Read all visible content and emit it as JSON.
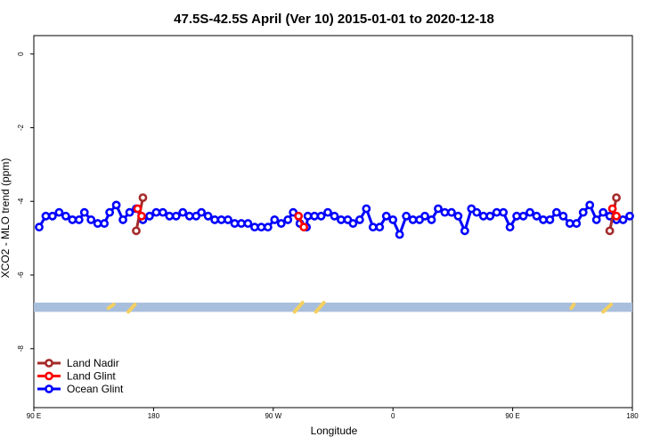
{
  "chart_data": {
    "type": "line",
    "title": "47.5S-42.5S April (Ver 10)   2015-01-01 to 2020-12-18",
    "xlabel": "Longitude",
    "ylabel": "XCO2 - MLO trend (ppm)",
    "x_ticks": [
      {
        "pos": 90,
        "label": "90 E"
      },
      {
        "pos": 180,
        "label": "180"
      },
      {
        "pos": 270,
        "label": "90 W"
      },
      {
        "pos": 360,
        "label": "0"
      },
      {
        "pos": 450,
        "label": "90 E"
      },
      {
        "pos": 540,
        "label": "180"
      }
    ],
    "y_ticks": [
      0,
      -2,
      -4,
      -6,
      -8
    ],
    "xlim": [
      90,
      540
    ],
    "ylim": [
      -9.6,
      0.5
    ],
    "legend_position": "bottom-left",
    "series": [
      {
        "name": "Land Nadir",
        "color": "#a52a2a",
        "segments": [
          [
            [
              167,
              -4.8
            ],
            [
              172,
              -3.9
            ]
          ],
          [
            [
              523,
              -4.8
            ],
            [
              528,
              -3.9
            ]
          ]
        ]
      },
      {
        "name": "Land Glint",
        "color": "#ff0000",
        "segments": [
          [
            [
              168,
              -4.2
            ],
            [
              171,
              -4.4
            ]
          ],
          [
            [
              289,
              -4.4
            ],
            [
              293,
              -4.7
            ]
          ],
          [
            [
              525,
              -4.2
            ],
            [
              528,
              -4.4
            ]
          ]
        ]
      },
      {
        "name": "Ocean Glint",
        "color": "#0000ff",
        "segments": [
          [
            [
              94,
              -4.7
            ],
            [
              99,
              -4.4
            ],
            [
              104,
              -4.4
            ],
            [
              109,
              -4.3
            ],
            [
              114,
              -4.4
            ],
            [
              119,
              -4.5
            ],
            [
              124,
              -4.5
            ],
            [
              128,
              -4.3
            ],
            [
              133,
              -4.5
            ],
            [
              138,
              -4.6
            ],
            [
              143,
              -4.6
            ],
            [
              147,
              -4.3
            ],
            [
              152,
              -4.1
            ],
            [
              157,
              -4.5
            ],
            [
              162,
              -4.3
            ],
            [
              167,
              -4.2
            ],
            [
              172,
              -4.5
            ],
            [
              177,
              -4.4
            ],
            [
              182,
              -4.3
            ],
            [
              187,
              -4.3
            ],
            [
              192,
              -4.4
            ],
            [
              197,
              -4.4
            ],
            [
              202,
              -4.3
            ],
            [
              207,
              -4.4
            ],
            [
              212,
              -4.4
            ],
            [
              216,
              -4.3
            ],
            [
              221,
              -4.4
            ],
            [
              226,
              -4.5
            ],
            [
              231,
              -4.5
            ],
            [
              236,
              -4.5
            ],
            [
              241,
              -4.6
            ],
            [
              246,
              -4.6
            ],
            [
              251,
              -4.6
            ],
            [
              256,
              -4.7
            ],
            [
              261,
              -4.7
            ],
            [
              266,
              -4.7
            ],
            [
              271,
              -4.5
            ],
            [
              276,
              -4.6
            ],
            [
              281,
              -4.5
            ],
            [
              285,
              -4.3
            ],
            [
              290,
              -4.6
            ],
            [
              295,
              -4.7
            ],
            [
              296,
              -4.4
            ],
            [
              301,
              -4.4
            ],
            [
              306,
              -4.4
            ],
            [
              311,
              -4.3
            ],
            [
              316,
              -4.4
            ],
            [
              321,
              -4.5
            ],
            [
              326,
              -4.5
            ],
            [
              330,
              -4.6
            ],
            [
              335,
              -4.5
            ],
            [
              340,
              -4.2
            ],
            [
              345,
              -4.7
            ],
            [
              350,
              -4.7
            ],
            [
              355,
              -4.4
            ],
            [
              360,
              -4.5
            ],
            [
              365,
              -4.9
            ],
            [
              370,
              -4.4
            ],
            [
              375,
              -4.5
            ],
            [
              380,
              -4.5
            ],
            [
              384,
              -4.4
            ],
            [
              389,
              -4.5
            ],
            [
              394,
              -4.2
            ],
            [
              399,
              -4.3
            ],
            [
              404,
              -4.3
            ],
            [
              409,
              -4.4
            ],
            [
              414,
              -4.8
            ],
            [
              419,
              -4.2
            ],
            [
              423,
              -4.3
            ],
            [
              428,
              -4.4
            ],
            [
              433,
              -4.4
            ],
            [
              438,
              -4.3
            ],
            [
              443,
              -4.3
            ],
            [
              448,
              -4.7
            ],
            [
              453,
              -4.4
            ],
            [
              458,
              -4.4
            ],
            [
              463,
              -4.3
            ],
            [
              468,
              -4.4
            ],
            [
              473,
              -4.5
            ],
            [
              478,
              -4.5
            ],
            [
              483,
              -4.3
            ],
            [
              488,
              -4.4
            ],
            [
              493,
              -4.6
            ],
            [
              498,
              -4.6
            ],
            [
              503,
              -4.3
            ],
            [
              508,
              -4.1
            ],
            [
              513,
              -4.5
            ],
            [
              518,
              -4.3
            ],
            [
              523,
              -4.4
            ],
            [
              528,
              -4.5
            ],
            [
              533,
              -4.5
            ],
            [
              538,
              -4.4
            ]
          ]
        ]
      }
    ],
    "band": {
      "y_range": [
        -7.0,
        -6.75
      ],
      "color": "#a8bedd",
      "land_marks_color": "#f4d060",
      "land_marks": [
        {
          "x": [
            146,
            150
          ],
          "y": [
            -6.9,
            -6.8
          ]
        },
        {
          "x": [
            161,
            166
          ],
          "y": [
            -7.0,
            -6.8
          ]
        },
        {
          "x": [
            286,
            292
          ],
          "y": [
            -7.0,
            -6.75
          ]
        },
        {
          "x": [
            302,
            308
          ],
          "y": [
            -7.0,
            -6.75
          ]
        },
        {
          "x": [
            494,
            496
          ],
          "y": [
            -6.9,
            -6.8
          ]
        },
        {
          "x": [
            518,
            524
          ],
          "y": [
            -7.0,
            -6.8
          ]
        }
      ]
    }
  }
}
